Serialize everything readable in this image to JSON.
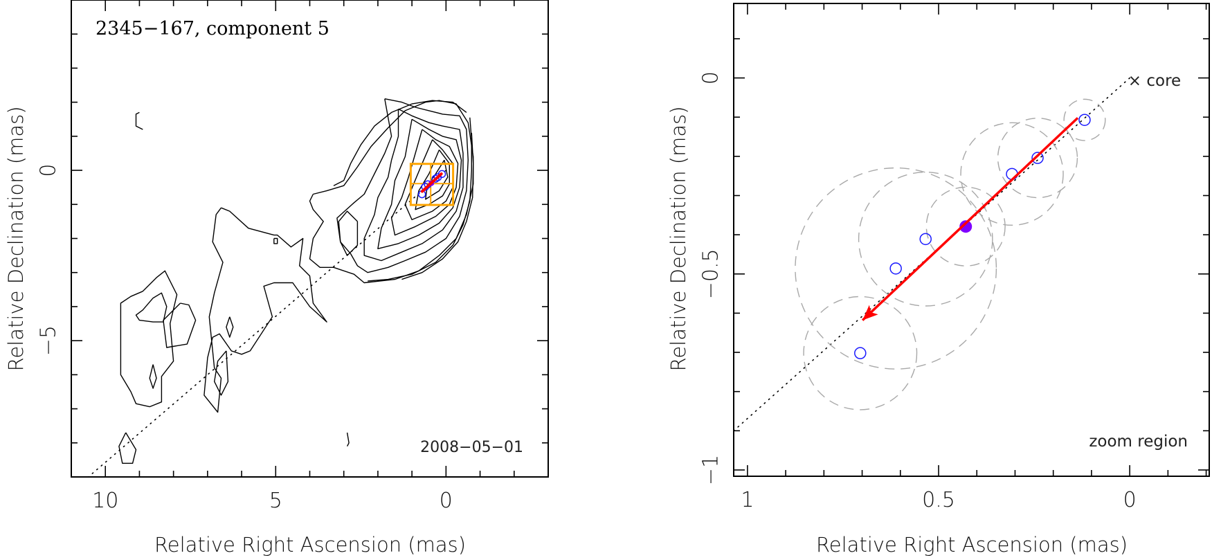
{
  "chart_data": [
    {
      "type": "contour-map",
      "panel": "left",
      "title": "2345−167, component 5",
      "date_label": "2008−05−01",
      "xlabel": "Relative Right Ascension (mas)",
      "ylabel": "Relative Declination (mas)",
      "xlim": [
        11,
        -3
      ],
      "ylim": [
        -9,
        5
      ],
      "x_ticks": [
        {
          "value": 10,
          "label": "10"
        },
        {
          "value": 5,
          "label": "5"
        },
        {
          "value": 0,
          "label": "0"
        }
      ],
      "y_ticks": [
        {
          "value": 0,
          "label": "0"
        },
        {
          "value": -5,
          "label": "−5"
        }
      ],
      "minor_step": 1,
      "contours": [
        [
          [
            3.9,
            -0.7
          ],
          [
            3.5,
            -0.6
          ],
          [
            3.0,
            -0.45
          ],
          [
            2.6,
            0.1
          ],
          [
            2.2,
            0.7
          ],
          [
            1.7,
            1.25
          ],
          [
            1.2,
            1.75
          ],
          [
            0.6,
            2.0
          ],
          [
            0.2,
            2.05
          ],
          [
            -0.3,
            1.95
          ],
          [
            -0.65,
            1.4
          ],
          [
            -0.8,
            0.4
          ],
          [
            -0.8,
            -0.4
          ],
          [
            -0.6,
            -1.3
          ],
          [
            -0.3,
            -2.0
          ],
          [
            0.2,
            -2.5
          ],
          [
            0.8,
            -2.95
          ],
          [
            1.5,
            -3.2
          ],
          [
            2.4,
            -3.3
          ],
          [
            2.7,
            -3.05
          ],
          [
            3.3,
            -2.85
          ],
          [
            3.7,
            -2.85
          ],
          [
            4.0,
            -2.6
          ],
          [
            3.9,
            -2.0
          ],
          [
            3.6,
            -1.5
          ],
          [
            3.9,
            -1.15
          ],
          [
            4.0,
            -0.9
          ],
          [
            3.9,
            -0.7
          ]
        ],
        [
          [
            2.6,
            -1.5
          ],
          [
            2.9,
            -1.2
          ],
          [
            3.15,
            -1.5
          ],
          [
            3.1,
            -2.1
          ],
          [
            2.9,
            -2.5
          ],
          [
            2.6,
            -2.2
          ],
          [
            2.6,
            -1.5
          ]
        ],
        [
          [
            6.6,
            -1.1
          ],
          [
            6.35,
            -1.2
          ],
          [
            5.8,
            -1.7
          ],
          [
            5.05,
            -1.9
          ],
          [
            4.95,
            -1.9
          ],
          [
            4.55,
            -2.25
          ],
          [
            4.2,
            -2.0
          ],
          [
            4.3,
            -2.8
          ],
          [
            4.0,
            -3.1
          ],
          [
            3.9,
            -3.9
          ],
          [
            3.5,
            -4.45
          ],
          [
            4.0,
            -4.0
          ],
          [
            4.5,
            -3.3
          ],
          [
            5.05,
            -3.3
          ],
          [
            5.35,
            -3.4
          ],
          [
            5.1,
            -4.3
          ],
          [
            5.75,
            -5.3
          ],
          [
            6.0,
            -5.4
          ],
          [
            6.3,
            -5.3
          ],
          [
            6.65,
            -4.8
          ],
          [
            6.85,
            -4.9
          ],
          [
            7.0,
            -5.5
          ],
          [
            7.1,
            -6.6
          ],
          [
            6.7,
            -7.1
          ],
          [
            6.6,
            -6.1
          ],
          [
            6.8,
            -5.8
          ],
          [
            6.95,
            -4.3
          ],
          [
            6.8,
            -3.6
          ],
          [
            6.55,
            -2.7
          ],
          [
            6.85,
            -2.1
          ],
          [
            6.75,
            -1.3
          ],
          [
            6.6,
            -1.1
          ]
        ],
        [
          [
            5.05,
            -2.0
          ],
          [
            4.95,
            -2.0
          ],
          [
            4.95,
            -2.15
          ],
          [
            5.05,
            -2.15
          ],
          [
            5.05,
            -2.0
          ]
        ],
        [
          [
            6.35,
            -4.3
          ],
          [
            6.25,
            -4.6
          ],
          [
            6.35,
            -4.9
          ],
          [
            6.45,
            -4.6
          ],
          [
            6.35,
            -4.3
          ]
        ],
        [
          [
            6.45,
            -5.3
          ],
          [
            6.7,
            -5.6
          ],
          [
            6.8,
            -6.2
          ],
          [
            6.6,
            -6.6
          ],
          [
            6.4,
            -6.2
          ],
          [
            6.45,
            -5.3
          ]
        ],
        [
          [
            7.8,
            -3.9
          ],
          [
            8.3,
            -4.4
          ],
          [
            8.2,
            -5.2
          ],
          [
            7.6,
            -5.1
          ],
          [
            7.35,
            -4.4
          ],
          [
            7.55,
            -3.95
          ],
          [
            7.8,
            -3.9
          ]
        ],
        [
          [
            8.9,
            -3.55
          ],
          [
            8.5,
            -3.15
          ],
          [
            8.25,
            -2.95
          ],
          [
            7.9,
            -3.65
          ],
          [
            8.1,
            -4.5
          ],
          [
            8.0,
            -5.6
          ],
          [
            8.35,
            -6.05
          ],
          [
            8.35,
            -6.8
          ],
          [
            8.7,
            -6.94
          ],
          [
            9.1,
            -6.85
          ],
          [
            9.25,
            -6.5
          ],
          [
            9.55,
            -6.0
          ],
          [
            9.55,
            -5.0
          ],
          [
            9.55,
            -3.9
          ],
          [
            9.25,
            -3.7
          ],
          [
            8.9,
            -3.55
          ]
        ],
        [
          [
            8.6,
            -3.75
          ],
          [
            8.35,
            -3.6
          ],
          [
            8.2,
            -4.0
          ],
          [
            8.3,
            -4.45
          ],
          [
            8.6,
            -4.45
          ],
          [
            9.0,
            -4.4
          ],
          [
            9.1,
            -4.25
          ],
          [
            8.9,
            -4.1
          ],
          [
            8.6,
            -3.75
          ]
        ],
        [
          [
            8.6,
            -5.7
          ],
          [
            8.5,
            -6.1
          ],
          [
            8.6,
            -6.4
          ],
          [
            8.7,
            -6.1
          ],
          [
            8.6,
            -5.7
          ]
        ],
        [
          [
            9.4,
            -7.7
          ],
          [
            9.1,
            -8.2
          ],
          [
            9.2,
            -8.6
          ],
          [
            9.5,
            -8.6
          ],
          [
            9.6,
            -8.1
          ],
          [
            9.4,
            -7.7
          ]
        ],
        [
          [
            2.9,
            -7.7
          ],
          [
            2.85,
            -8.0
          ],
          [
            2.9,
            -8.1
          ]
        ],
        [
          [
            8.9,
            1.2
          ],
          [
            9.1,
            1.3
          ],
          [
            9.1,
            1.65
          ],
          [
            9.0,
            1.7
          ]
        ],
        [
          [
            1.8,
            2.1
          ],
          [
            1.3,
            2.0
          ],
          [
            0.9,
            1.85
          ],
          [
            0.5,
            1.75
          ],
          [
            0.1,
            1.65
          ],
          [
            -0.4,
            1.6
          ],
          [
            -0.6,
            1.2
          ],
          [
            -0.65,
            0.3
          ],
          [
            -0.6,
            -0.6
          ],
          [
            -0.4,
            -1.35
          ],
          [
            0,
            -2.0
          ],
          [
            0.6,
            -2.4
          ],
          [
            1.2,
            -2.65
          ],
          [
            1.7,
            -2.85
          ],
          [
            2.3,
            -3.0
          ],
          [
            2.6,
            -2.8
          ],
          [
            2.8,
            -2.45
          ],
          [
            3.1,
            -2.1
          ],
          [
            3.2,
            -1.4
          ],
          [
            2.7,
            -0.95
          ],
          [
            2.4,
            -0.7
          ],
          [
            2.1,
            -0.1
          ],
          [
            1.8,
            0.5
          ],
          [
            1.6,
            1.0
          ],
          [
            1.8,
            2.1
          ]
        ],
        [
          [
            1.4,
            1.8
          ],
          [
            1.0,
            1.6
          ],
          [
            0.5,
            1.4
          ],
          [
            0.1,
            1.3
          ],
          [
            -0.4,
            1.2
          ],
          [
            -0.5,
            0.5
          ],
          [
            -0.5,
            -0.5
          ],
          [
            -0.3,
            -1.2
          ],
          [
            0.1,
            -1.75
          ],
          [
            0.7,
            -2.15
          ],
          [
            1.3,
            -2.4
          ],
          [
            1.9,
            -2.65
          ],
          [
            2.4,
            -2.5
          ],
          [
            2.4,
            -2.0
          ],
          [
            2.1,
            -1.3
          ],
          [
            2.0,
            -0.8
          ],
          [
            1.7,
            -0.2
          ],
          [
            1.6,
            0.3
          ],
          [
            1.4,
            1.0
          ],
          [
            1.4,
            1.8
          ]
        ],
        [
          [
            1.0,
            1.5
          ],
          [
            0.5,
            1.2
          ],
          [
            0.1,
            1.0
          ],
          [
            -0.3,
            0.9
          ],
          [
            -0.45,
            0.3
          ],
          [
            -0.4,
            -0.5
          ],
          [
            -0.2,
            -1.1
          ],
          [
            0.2,
            -1.55
          ],
          [
            0.8,
            -1.9
          ],
          [
            1.4,
            -2.15
          ],
          [
            2.0,
            -2.3
          ],
          [
            1.9,
            -1.7
          ],
          [
            1.6,
            -1.0
          ],
          [
            1.5,
            -0.3
          ],
          [
            1.2,
            0.4
          ],
          [
            1.0,
            1.5
          ]
        ],
        [
          [
            0.7,
            1.2
          ],
          [
            0.3,
            0.9
          ],
          [
            -0.1,
            0.7
          ],
          [
            -0.35,
            0.2
          ],
          [
            -0.3,
            -0.5
          ],
          [
            -0.1,
            -1.0
          ],
          [
            0.3,
            -1.35
          ],
          [
            0.9,
            -1.65
          ],
          [
            1.5,
            -1.9
          ],
          [
            1.6,
            -1.4
          ],
          [
            1.3,
            -0.8
          ],
          [
            1.1,
            -0.2
          ],
          [
            0.9,
            0.5
          ],
          [
            0.7,
            1.2
          ]
        ],
        [
          [
            0.4,
            0.9
          ],
          [
            0.1,
            0.6
          ],
          [
            -0.2,
            0.2
          ],
          [
            -0.2,
            -0.5
          ],
          [
            0.0,
            -0.9
          ],
          [
            0.4,
            -1.2
          ],
          [
            1.0,
            -1.45
          ],
          [
            1.2,
            -1.0
          ],
          [
            0.95,
            -0.4
          ],
          [
            0.7,
            0.2
          ],
          [
            0.4,
            0.9
          ]
        ],
        [
          [
            0.2,
            0.6
          ],
          [
            -0.1,
            0.2
          ],
          [
            -0.1,
            -0.4
          ],
          [
            0.1,
            -0.75
          ],
          [
            0.5,
            -1.0
          ],
          [
            0.9,
            -1.15
          ],
          [
            0.8,
            -0.6
          ],
          [
            0.5,
            -0.1
          ],
          [
            0.2,
            0.6
          ]
        ],
        [
          [
            0.05,
            0.3
          ],
          [
            -0.05,
            -0.2
          ],
          [
            0.2,
            -0.6
          ],
          [
            0.6,
            -0.85
          ],
          [
            0.55,
            -0.45
          ],
          [
            0.3,
            -0.1
          ],
          [
            0.05,
            0.3
          ]
        ],
        [
          [
            -0.6,
            1.7
          ],
          [
            -0.2,
            2.0
          ],
          [
            0.4,
            2.05
          ],
          [
            1.0,
            1.95
          ],
          [
            1.6,
            1.7
          ],
          [
            2.1,
            1.3
          ],
          [
            2.5,
            0.75
          ],
          [
            2.8,
            0.2
          ],
          [
            3.0,
            -0.3
          ],
          [
            3.3,
            -0.45
          ]
        ],
        [
          [
            -0.7,
            1.55
          ],
          [
            -0.75,
            0.9
          ],
          [
            -0.75,
            0
          ],
          [
            -0.7,
            -0.9
          ],
          [
            -0.5,
            -1.6
          ],
          [
            -0.2,
            -2.2
          ],
          [
            0.3,
            -2.7
          ],
          [
            1.0,
            -3.05
          ],
          [
            1.7,
            -3.2
          ],
          [
            2.3,
            -3.25
          ]
        ],
        [
          [
            -0.75,
            1.1
          ],
          [
            -0.8,
            0.2
          ],
          [
            -0.78,
            -0.8
          ],
          [
            -0.6,
            -1.5
          ],
          [
            -0.35,
            -2.1
          ],
          [
            0.1,
            -2.6
          ],
          [
            0.7,
            -3.0
          ],
          [
            1.3,
            -3.2
          ]
        ]
      ],
      "ridge_line": [
        [
          0,
          0
        ],
        [
          10.5,
          -9
        ]
      ],
      "zoom_box": {
        "x": [
          1.036,
          -0.208
        ],
        "y": [
          0.19,
          -1.016
        ],
        "crosshair": [
          0.45,
          -0.39
        ],
        "color": "#ffa500"
      },
      "components": [
        {
          "x": 0.118,
          "y": -0.107
        },
        {
          "x": 0.241,
          "y": -0.204
        },
        {
          "x": 0.308,
          "y": -0.245
        },
        {
          "x": 0.534,
          "y": -0.411
        },
        {
          "x": 0.612,
          "y": -0.486
        },
        {
          "x": 0.705,
          "y": -0.702
        }
      ],
      "highlighted_component": {
        "x": 0.429,
        "y": -0.379
      },
      "velocity_arrow": {
        "from": [
          0.136,
          -0.102
        ],
        "to": [
          0.699,
          -0.618
        ]
      }
    },
    {
      "type": "scatter",
      "panel": "right",
      "annotation_core": "× core",
      "annotation_region": "zoom region",
      "xlabel": "Relative Right Ascension (mas)",
      "ylabel": "Relative Declination (mas)",
      "xlim": [
        1.036,
        -0.208
      ],
      "ylim": [
        -1.016,
        0.19
      ],
      "x_ticks": [
        {
          "value": 1,
          "label": "1"
        },
        {
          "value": 0.5,
          "label": "0.5"
        },
        {
          "value": 0,
          "label": "0"
        }
      ],
      "y_ticks": [
        {
          "value": 0,
          "label": "0"
        },
        {
          "value": -0.5,
          "label": "−0.5"
        },
        {
          "value": -1,
          "label": "−1"
        }
      ],
      "minor_step": 0.1,
      "core": {
        "x": 0,
        "y": 0
      },
      "ridge_line": [
        [
          0,
          0
        ],
        [
          1.036,
          -0.9
        ]
      ],
      "components": [
        {
          "x": 0.118,
          "y": -0.107,
          "err_radius": 0.054
        },
        {
          "x": 0.241,
          "y": -0.204,
          "err_radius": 0.104
        },
        {
          "x": 0.308,
          "y": -0.245,
          "err_radius": 0.134
        },
        {
          "x": 0.534,
          "y": -0.411,
          "err_radius": 0.175
        },
        {
          "x": 0.612,
          "y": -0.486,
          "err_radius": 0.263
        },
        {
          "x": 0.705,
          "y": -0.702,
          "err_radius": 0.148
        }
      ],
      "highlighted_component": {
        "x": 0.429,
        "y": -0.379,
        "err_radius": 0.103
      },
      "velocity_arrow": {
        "from": [
          0.136,
          -0.102
        ],
        "to": [
          0.699,
          -0.618
        ]
      },
      "colors": {
        "component": "#1a1aff",
        "highlight": "#7f00ff",
        "arrow": "#ff0000",
        "error_circle": "#a8a8a8"
      }
    }
  ]
}
